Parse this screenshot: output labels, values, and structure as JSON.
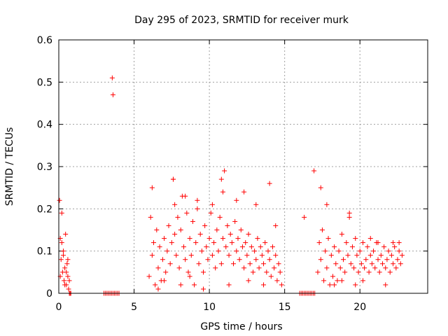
{
  "chart_data": {
    "type": "scatter",
    "title": "Day 295 of 2023, SRMTID for receiver murk",
    "xlabel": "GPS time / hours",
    "ylabel": "SRMTID / TECUs",
    "xlim": [
      0,
      24.5
    ],
    "ylim": [
      0,
      0.6
    ],
    "xticks": [
      0,
      5,
      10,
      15,
      20
    ],
    "xtick_labels": [
      "0",
      "5",
      "10",
      "15",
      "20"
    ],
    "yticks": [
      0,
      0.1,
      0.2,
      0.3,
      0.4,
      0.5,
      0.6
    ],
    "ytick_labels": [
      "0",
      "0.1",
      "0.2",
      "0.3",
      "0.4",
      "0.5",
      "0.6"
    ],
    "grid": true,
    "marker": "+",
    "series_color": "#ff0000",
    "grid_color": "#a0a0a0",
    "series": [
      {
        "name": "SRMTID",
        "x": [
          0.05,
          0.1,
          0.15,
          0.2,
          0.25,
          0.3,
          0.35,
          0.4,
          0.45,
          0.5,
          0.55,
          0.6,
          0.65,
          0.7,
          0.75,
          0.8,
          0.1,
          0.2,
          0.3,
          0.4,
          0.5,
          0.6,
          0.7,
          3.0,
          3.1,
          3.2,
          3.3,
          3.4,
          3.5,
          3.6,
          3.7,
          3.8,
          3.9,
          4.0,
          3.55,
          3.6,
          6.0,
          6.1,
          6.2,
          6.3,
          6.4,
          6.5,
          6.6,
          6.7,
          6.8,
          6.9,
          7.0,
          7.1,
          7.2,
          7.3,
          7.4,
          7.5,
          7.6,
          7.7,
          7.8,
          7.9,
          8.0,
          8.1,
          8.2,
          8.3,
          8.4,
          8.5,
          8.6,
          8.7,
          8.8,
          8.9,
          9.0,
          9.1,
          9.2,
          9.3,
          9.4,
          9.5,
          9.6,
          9.7,
          9.8,
          9.9,
          10.0,
          10.1,
          10.2,
          10.3,
          10.4,
          10.5,
          10.6,
          10.7,
          10.8,
          10.9,
          11.0,
          11.1,
          11.2,
          11.3,
          11.4,
          11.5,
          11.6,
          11.7,
          11.8,
          11.9,
          12.0,
          12.1,
          12.2,
          12.3,
          12.4,
          12.5,
          12.6,
          12.7,
          12.8,
          12.9,
          13.0,
          13.1,
          13.2,
          13.3,
          13.4,
          13.5,
          13.6,
          13.7,
          13.8,
          13.9,
          14.0,
          14.1,
          14.2,
          14.3,
          14.4,
          14.5,
          14.6,
          14.7,
          14.8,
          6.2,
          6.6,
          7.0,
          7.6,
          7.7,
          8.1,
          8.4,
          8.7,
          9.2,
          9.6,
          10.2,
          10.8,
          10.9,
          11.3,
          11.8,
          12.3,
          12.6,
          13.1,
          13.6,
          14.0,
          14.4,
          16.0,
          16.1,
          16.2,
          16.3,
          16.4,
          16.5,
          16.6,
          16.7,
          16.8,
          16.9,
          17.0,
          16.3,
          16.95,
          17.2,
          17.3,
          17.4,
          17.5,
          17.6,
          17.7,
          17.8,
          17.9,
          18.0,
          18.1,
          18.2,
          18.3,
          18.4,
          18.5,
          18.6,
          18.7,
          18.8,
          18.9,
          19.0,
          19.1,
          19.2,
          19.3,
          19.4,
          19.5,
          19.6,
          19.7,
          19.8,
          19.9,
          20.0,
          20.1,
          20.2,
          20.3,
          20.4,
          20.5,
          20.6,
          20.7,
          20.8,
          20.9,
          21.0,
          21.1,
          21.2,
          21.3,
          21.4,
          21.5,
          21.6,
          21.7,
          21.8,
          21.9,
          22.0,
          22.1,
          22.2,
          22.3,
          22.4,
          22.5,
          22.6,
          22.7,
          22.8,
          17.4,
          17.8,
          18.3,
          18.8,
          19.3,
          19.7,
          20.2,
          20.7,
          21.2,
          21.7,
          22.2,
          22.6
        ],
        "y": [
          0.22,
          0.13,
          0.08,
          0.19,
          0.05,
          0.1,
          0.03,
          0.06,
          0.14,
          0.02,
          0.07,
          0.04,
          0.01,
          0.0,
          0.0,
          0.0,
          0.04,
          0.12,
          0.09,
          0.02,
          0.05,
          0.08,
          0.03,
          0.0,
          0.0,
          0.0,
          0.0,
          0.0,
          0.0,
          0.0,
          0.0,
          0.0,
          0.0,
          0.0,
          0.51,
          0.47,
          0.04,
          0.18,
          0.09,
          0.12,
          0.02,
          0.15,
          0.06,
          0.11,
          0.03,
          0.08,
          0.13,
          0.05,
          0.1,
          0.16,
          0.07,
          0.12,
          0.27,
          0.14,
          0.09,
          0.18,
          0.06,
          0.15,
          0.23,
          0.11,
          0.08,
          0.19,
          0.05,
          0.13,
          0.09,
          0.17,
          0.02,
          0.12,
          0.2,
          0.07,
          0.14,
          0.1,
          0.05,
          0.16,
          0.11,
          0.08,
          0.13,
          0.19,
          0.09,
          0.12,
          0.06,
          0.15,
          0.1,
          0.18,
          0.07,
          0.13,
          0.29,
          0.11,
          0.16,
          0.09,
          0.14,
          0.12,
          0.07,
          0.17,
          0.1,
          0.13,
          0.08,
          0.15,
          0.11,
          0.06,
          0.12,
          0.09,
          0.14,
          0.07,
          0.11,
          0.05,
          0.1,
          0.08,
          0.13,
          0.06,
          0.11,
          0.09,
          0.07,
          0.12,
          0.05,
          0.1,
          0.08,
          0.04,
          0.11,
          0.06,
          0.09,
          0.03,
          0.07,
          0.05,
          0.02,
          0.25,
          0.01,
          0.03,
          0.27,
          0.21,
          0.02,
          0.23,
          0.04,
          0.22,
          0.01,
          0.21,
          0.27,
          0.24,
          0.02,
          0.22,
          0.24,
          0.03,
          0.21,
          0.02,
          0.26,
          0.16,
          0.0,
          0.0,
          0.0,
          0.0,
          0.0,
          0.0,
          0.0,
          0.0,
          0.0,
          0.0,
          0.0,
          0.18,
          0.29,
          0.05,
          0.12,
          0.08,
          0.15,
          0.03,
          0.1,
          0.06,
          0.13,
          0.02,
          0.09,
          0.04,
          0.11,
          0.07,
          0.03,
          0.1,
          0.06,
          0.14,
          0.08,
          0.05,
          0.12,
          0.09,
          0.18,
          0.07,
          0.11,
          0.06,
          0.13,
          0.09,
          0.05,
          0.1,
          0.07,
          0.12,
          0.06,
          0.08,
          0.11,
          0.05,
          0.09,
          0.07,
          0.1,
          0.06,
          0.12,
          0.08,
          0.05,
          0.09,
          0.07,
          0.11,
          0.06,
          0.08,
          0.1,
          0.05,
          0.09,
          0.07,
          0.11,
          0.06,
          0.08,
          0.1,
          0.07,
          0.09,
          0.25,
          0.21,
          0.02,
          0.03,
          0.19,
          0.02,
          0.03,
          0.13,
          0.12,
          0.02,
          0.12,
          0.12
        ]
      }
    ]
  }
}
